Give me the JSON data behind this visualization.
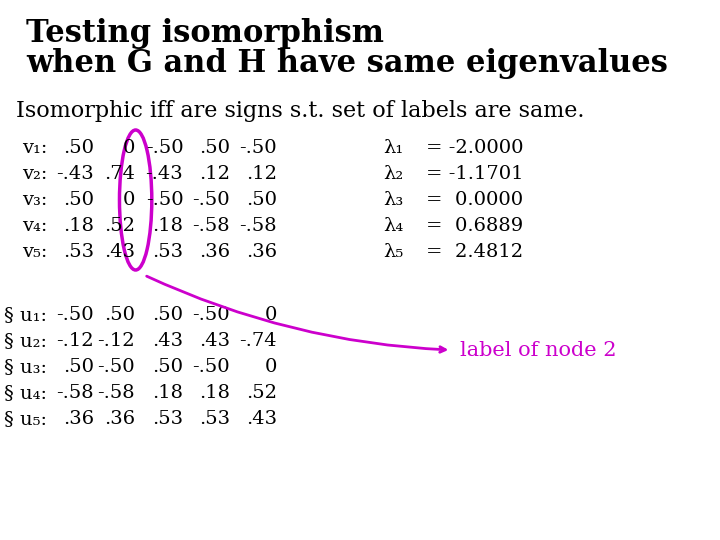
{
  "title_line1": "Testing isomorphism",
  "title_line2": "when G and H have same eigenvalues",
  "subtitle": "Isomorphic iff are signs s.t. set of labels are same.",
  "bg_color": "#ffffff",
  "title_fontsize": 22,
  "subtitle_fontsize": 16,
  "table_fontsize": 14,
  "v_labels": [
    "v₁:",
    "v₂:",
    "v₃:",
    "v₄:",
    "v₅:"
  ],
  "v_data": [
    [
      ".50",
      "0",
      "-.50",
      ".50",
      "-.50"
    ],
    [
      "-.43",
      ".74",
      "-.43",
      ".12",
      ".12"
    ],
    [
      ".50",
      "0",
      "-.50",
      "-.50",
      ".50"
    ],
    [
      ".18",
      ".52",
      ".18",
      "-.58",
      "-.58"
    ],
    [
      ".53",
      ".43",
      ".53",
      ".36",
      ".36"
    ]
  ],
  "u_labels": [
    "§ u₁:",
    "§ u₂:",
    "§ u₃:",
    "§ u₄:",
    "§ u₅:"
  ],
  "u_data": [
    [
      "-.50",
      ".50",
      ".50",
      "-.50",
      "0"
    ],
    [
      "-.12",
      "-.12",
      ".43",
      ".43",
      "-.74"
    ],
    [
      ".50",
      "-.50",
      ".50",
      "-.50",
      "0"
    ],
    [
      "-.58",
      "-.58",
      ".18",
      ".18",
      ".52"
    ],
    [
      ".36",
      ".36",
      ".53",
      ".53",
      ".43"
    ]
  ],
  "eigenvalues": [
    [
      "λ₁",
      "= -2.0000"
    ],
    [
      "λ₂",
      "= -1.1701"
    ],
    [
      "λ₃",
      "=  0.0000"
    ],
    [
      "λ₄",
      "=  0.6889"
    ],
    [
      "λ₅",
      "=  2.4812"
    ]
  ],
  "annotation_text": "label of node 2",
  "annotation_color": "#cc00cc",
  "circle_color": "#cc00cc"
}
